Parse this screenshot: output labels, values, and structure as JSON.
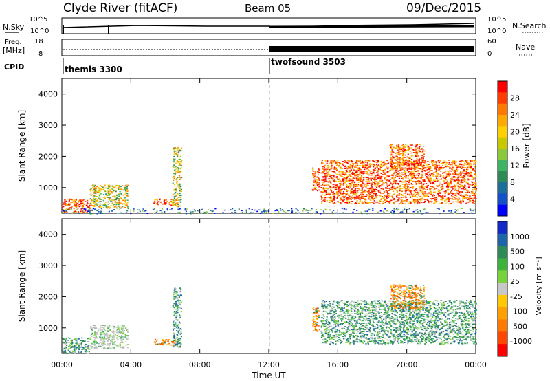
{
  "header": {
    "site_title": "Clyde River (fitACF)",
    "beam": "Beam 05",
    "date": "09/Dec/2015"
  },
  "top_panels": {
    "nsky_label": "N.Sky",
    "nsky_ticks": [
      "10^5",
      "10^0"
    ],
    "nsearch_label": "N.Search",
    "nsearch_ticks": [
      "10^5",
      "10^0"
    ],
    "freq_label": "Freq.",
    "freq_unit": "[MHz]",
    "freq_ticks": [
      "18",
      "8"
    ],
    "nave_label": "Nave",
    "nave_ticks": [
      "60",
      "0"
    ],
    "cpid_label": "CPID",
    "cpid_modes": [
      {
        "name": "themis 3300",
        "start_hour": 0
      },
      {
        "name": "twofsound 3503",
        "start_hour": 12
      }
    ]
  },
  "chart_data": [
    {
      "type": "heatmap",
      "panel": "power",
      "xlabel": "",
      "ylabel": "Slant Range [km]",
      "xlim": [
        0,
        24
      ],
      "ylim": [
        180,
        4500
      ],
      "yticks": [
        1000,
        2000,
        3000,
        4000
      ],
      "xticks": [
        0,
        4,
        8,
        12,
        16,
        20,
        24
      ],
      "colorbar": {
        "label": "Power [dB]",
        "ticks": [
          "28",
          "24",
          "20",
          "16",
          "12",
          "8",
          "4"
        ],
        "colors": [
          "#ff0000",
          "#ff3c00",
          "#ff7800",
          "#ffa800",
          "#ffd000",
          "#c8c800",
          "#8cc83c",
          "#3cb464",
          "#2e8b57",
          "#1e6e9b",
          "#1450c8",
          "#0000ff"
        ]
      },
      "regions": [
        {
          "t0": 0.0,
          "t1": 1.6,
          "r0": 200,
          "r1": 650,
          "level": "high"
        },
        {
          "t0": 1.6,
          "t1": 3.8,
          "r0": 350,
          "r1": 1100,
          "level": "medium"
        },
        {
          "t0": 5.3,
          "t1": 6.6,
          "r0": 450,
          "r1": 650,
          "level": "high"
        },
        {
          "t0": 6.4,
          "t1": 6.9,
          "r0": 400,
          "r1": 2300,
          "level": "medium"
        },
        {
          "t0": 14.5,
          "t1": 14.9,
          "r0": 900,
          "r1": 1700,
          "level": "high"
        },
        {
          "t0": 15.0,
          "t1": 24.0,
          "r0": 500,
          "r1": 1900,
          "level": "high"
        },
        {
          "t0": 19.0,
          "t1": 21.0,
          "r0": 1600,
          "r1": 2400,
          "level": "high"
        },
        {
          "t0": 0.0,
          "t1": 24.0,
          "r0": 180,
          "r1": 350,
          "level": "low"
        }
      ]
    },
    {
      "type": "heatmap",
      "panel": "velocity",
      "xlabel": "Time UT",
      "ylabel": "Slant Range [km]",
      "xlim": [
        0,
        24
      ],
      "ylim": [
        180,
        4500
      ],
      "yticks": [
        1000,
        2000,
        3000,
        4000
      ],
      "xticks": [
        0,
        4,
        8,
        12,
        16,
        20,
        24
      ],
      "xticklabels": [
        "00:00",
        "04:00",
        "08:00",
        "12:00",
        "16:00",
        "20:00",
        "00:00"
      ],
      "colorbar": {
        "label": "Velocity [m s⁻¹]",
        "ticks": [
          "1000",
          "500",
          "100",
          "25",
          "-25",
          "-100",
          "-500",
          "-1000"
        ],
        "colors": [
          "#1428c8",
          "#1e64aa",
          "#2e8b57",
          "#3cb43c",
          "#78d23c",
          "#c8c8c8",
          "#ffc800",
          "#ffa000",
          "#ff7800",
          "#ff4600",
          "#ff0000"
        ]
      },
      "regions": [
        {
          "t0": 0.0,
          "t1": 1.6,
          "r0": 200,
          "r1": 700,
          "level": "green"
        },
        {
          "t0": 1.6,
          "t1": 3.8,
          "r0": 350,
          "r1": 1100,
          "level": "gray"
        },
        {
          "t0": 5.3,
          "t1": 6.6,
          "r0": 450,
          "r1": 650,
          "level": "orange"
        },
        {
          "t0": 6.4,
          "t1": 6.9,
          "r0": 400,
          "r1": 2300,
          "level": "green"
        },
        {
          "t0": 14.5,
          "t1": 14.9,
          "r0": 900,
          "r1": 1700,
          "level": "orange"
        },
        {
          "t0": 15.0,
          "t1": 24.0,
          "r0": 500,
          "r1": 1900,
          "level": "green"
        },
        {
          "t0": 19.0,
          "t1": 21.0,
          "r0": 1600,
          "r1": 2400,
          "level": "orange"
        }
      ]
    }
  ]
}
